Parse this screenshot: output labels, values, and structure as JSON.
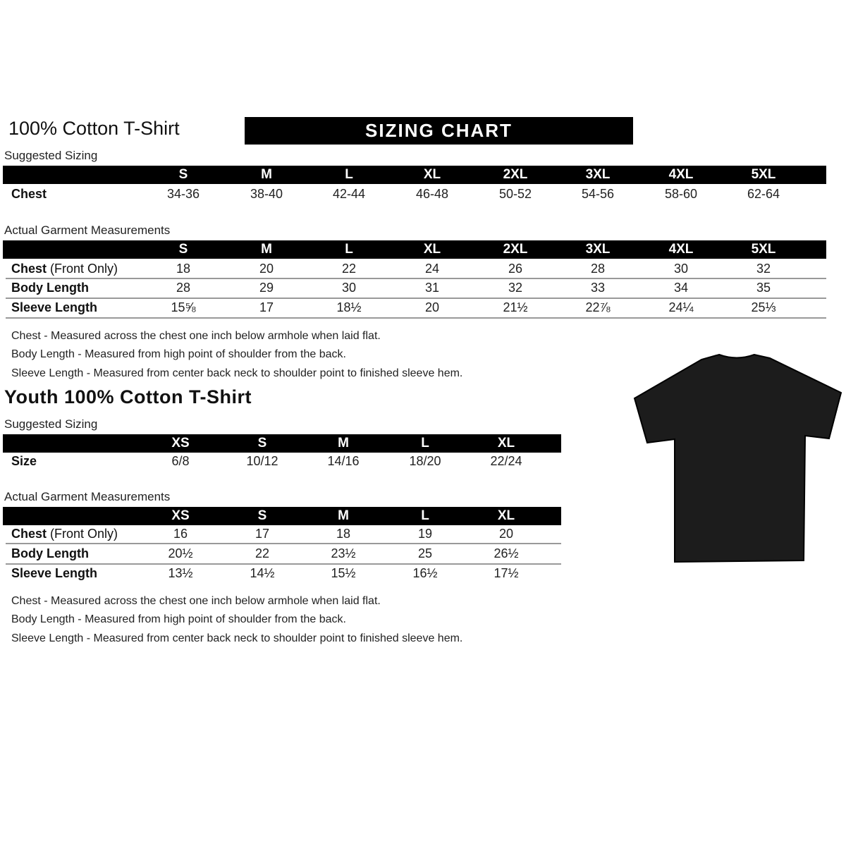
{
  "header": {
    "title": "100% Cotton T-Shirt",
    "banner": "SIZING CHART"
  },
  "adult": {
    "suggested": {
      "label": "Suggested Sizing",
      "sizes": [
        "S",
        "M",
        "L",
        "XL",
        "2XL",
        "3XL",
        "4XL",
        "5XL"
      ],
      "rows": [
        {
          "label": "Chest",
          "values": [
            "34-36",
            "38-40",
            "42-44",
            "46-48",
            "50-52",
            "54-56",
            "58-60",
            "62-64"
          ]
        }
      ]
    },
    "actual": {
      "label": "Actual Garment Measurements",
      "sizes": [
        "S",
        "M",
        "L",
        "XL",
        "2XL",
        "3XL",
        "4XL",
        "5XL"
      ],
      "rows": [
        {
          "label": "Chest",
          "label_suffix": " (Front Only)",
          "values": [
            "18",
            "20",
            "22",
            "24",
            "26",
            "28",
            "30",
            "32"
          ]
        },
        {
          "label": "Body Length",
          "values": [
            "28",
            "29",
            "30",
            "31",
            "32",
            "33",
            "34",
            "35"
          ]
        },
        {
          "label": "Sleeve Length",
          "values": [
            "15⅝",
            "17",
            "18½",
            "20",
            "21½",
            "22⅞",
            "24¼",
            "25⅓"
          ]
        }
      ]
    },
    "notes": [
      "Chest - Measured across the chest one inch below armhole when laid flat.",
      "Body Length - Measured from high point of shoulder from the back.",
      "Sleeve Length - Measured from center back neck to shoulder point to finished sleeve hem."
    ]
  },
  "youth": {
    "title": "Youth 100% Cotton T-Shirt",
    "suggested": {
      "label": "Suggested Sizing",
      "sizes": [
        "XS",
        "S",
        "M",
        "L",
        "XL"
      ],
      "rows": [
        {
          "label": "Size",
          "values": [
            "6/8",
            "10/12",
            "14/16",
            "18/20",
            "22/24"
          ]
        }
      ]
    },
    "actual": {
      "label": "Actual Garment Measurements",
      "sizes": [
        "XS",
        "S",
        "M",
        "L",
        "XL"
      ],
      "rows": [
        {
          "label": "Chest",
          "label_suffix": " (Front Only)",
          "values": [
            "16",
            "17",
            "18",
            "19",
            "20"
          ]
        },
        {
          "label": "Body Length",
          "values": [
            "20½",
            "22",
            "23½",
            "25",
            "26½"
          ]
        },
        {
          "label": "Sleeve Length",
          "values": [
            "13½",
            "14½",
            "15½",
            "16½",
            "17½"
          ]
        }
      ]
    },
    "notes": [
      "Chest - Measured across the chest one inch below armhole when laid flat.",
      "Body Length - Measured from high point of shoulder from the back.",
      "Sleeve Length - Measured from center back neck to shoulder point to finished sleeve hem."
    ]
  },
  "image": {
    "icon": "black-t-shirt-icon",
    "color": "#1c1c1c"
  }
}
